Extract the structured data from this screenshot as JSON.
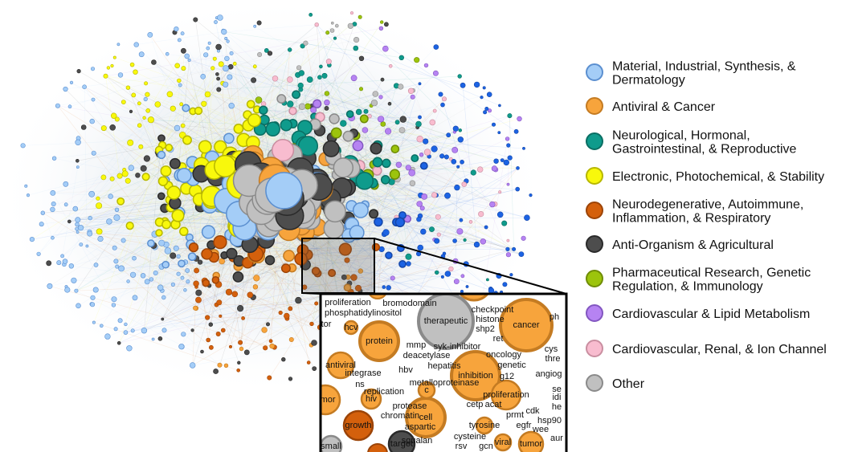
{
  "legend": [
    {
      "label": [
        "Material, Industrial, Synthesis, &",
        "Dermatology"
      ],
      "color": "#a4cdf7",
      "stroke": "#5b8fd0"
    },
    {
      "label": [
        "Antiviral & Cancer"
      ],
      "color": "#f7a43c",
      "stroke": "#c47b22"
    },
    {
      "label": [
        "Neurological, Hormonal,",
        "Gastrointestinal, & Reproductive"
      ],
      "color": "#0f9b8c",
      "stroke": "#0a6e63"
    },
    {
      "label": [
        "Electronic, Photochemical, & Stability"
      ],
      "color": "#f8f80c",
      "stroke": "#b7b700"
    },
    {
      "label": [
        "Neurodegenerative, Autoimmune,",
        "Inflammation, & Respiratory"
      ],
      "color": "#d4600c",
      "stroke": "#9c4407"
    },
    {
      "label": [
        "Anti-Organism & Agricultural"
      ],
      "color": "#4d4d4d",
      "stroke": "#2a2a2a"
    },
    {
      "label": [
        "Pharmaceutical Research, Genetic",
        "Regulation, & Immunology"
      ],
      "color": "#9cc40c",
      "stroke": "#6f8c06"
    },
    {
      "label": [
        "Cardiovascular & Lipid Metabolism"
      ],
      "color": "#b683f2",
      "stroke": "#8256c0"
    },
    {
      "label": [
        "Cardiovascular, Renal, & Ion Channel"
      ],
      "color": "#f8bccf",
      "stroke": "#c98ea0"
    },
    {
      "label": [
        "Other"
      ],
      "color": "#c0c0c0",
      "stroke": "#8a8a8a"
    }
  ],
  "inset": {
    "labels": [
      "therapeutic",
      "cancer",
      "protein",
      "inhibition",
      "cell",
      "growth",
      "hiv",
      "antiviral",
      "umor",
      "proliferation",
      "hcv",
      "target",
      "small",
      "viral",
      "tumor",
      "tyrosine",
      "c",
      "replication",
      "proliferation",
      "bromodomain",
      "phosphatidylinositol",
      "tor",
      "checkpoint",
      "histone",
      "shp2",
      "ret",
      "mmp",
      "syk-inhibitor",
      "deacetylase",
      "hepatitis",
      "oncology",
      "genetic",
      "hbv",
      "integrase",
      "g12",
      "angiog",
      "ns",
      "metalloproteinase",
      "cetp",
      "acat",
      "protease",
      "chromatin",
      "prmt",
      "cdk",
      "egfr",
      "hsp90",
      "aspartic",
      "wee",
      "squalan",
      "cysteine",
      "rsv",
      "gcn",
      "ph",
      "cys",
      "thre",
      "se",
      "idi",
      "he",
      "aur"
    ]
  }
}
